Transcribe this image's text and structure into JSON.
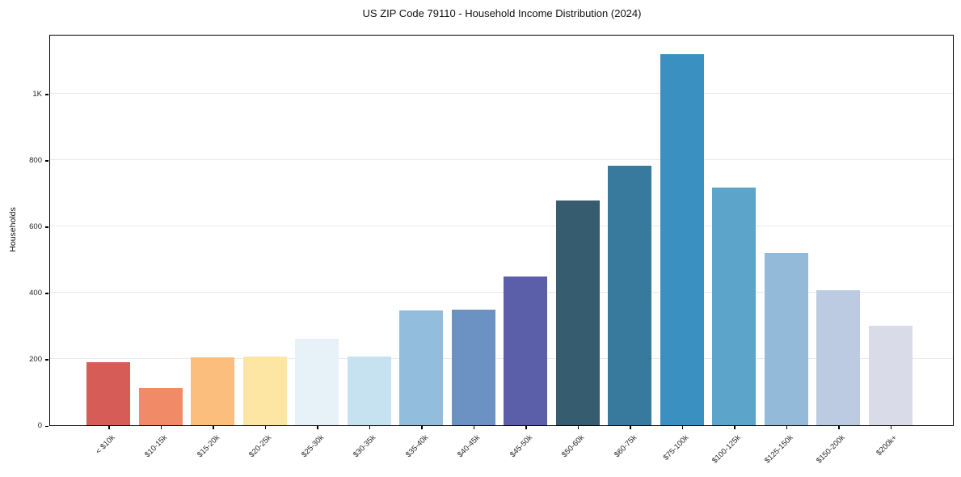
{
  "chart_data": {
    "type": "bar",
    "title": "US ZIP Code 79110 - Household Income Distribution (2024)",
    "xlabel": "",
    "ylabel": "Households",
    "ylim": [
      0,
      1180
    ],
    "grid": true,
    "legend": false,
    "categories": [
      "< $10k",
      "$10-15k",
      "$15-20k",
      "$20-25k",
      "$25-30k",
      "$30-35k",
      "$35-40k",
      "$40-45k",
      "$45-50k",
      "$50-60k",
      "$60-75k",
      "$75-100k",
      "$100-125k",
      "$125-150k",
      "$150-200k",
      "$200k+"
    ],
    "values": [
      189,
      111,
      205,
      208,
      262,
      208,
      347,
      349,
      448,
      678,
      782,
      1120,
      717,
      520,
      406,
      300
    ],
    "bar_colors": [
      "#d65d57",
      "#f18b67",
      "#fcbe7d",
      "#fde5a4",
      "#e7f1f8",
      "#c6e1ef",
      "#93bddd",
      "#6c92c4",
      "#5b5ea9",
      "#365c70",
      "#38799e",
      "#3b90c2",
      "#5da4ca",
      "#94bada",
      "#bccbe2",
      "#dadbe9"
    ],
    "yticks": [
      {
        "value": 0,
        "label": "0"
      },
      {
        "value": 200,
        "label": "200"
      },
      {
        "value": 400,
        "label": "400"
      },
      {
        "value": 600,
        "label": "600"
      },
      {
        "value": 800,
        "label": "800"
      },
      {
        "value": 1000,
        "label": "1K"
      }
    ]
  }
}
